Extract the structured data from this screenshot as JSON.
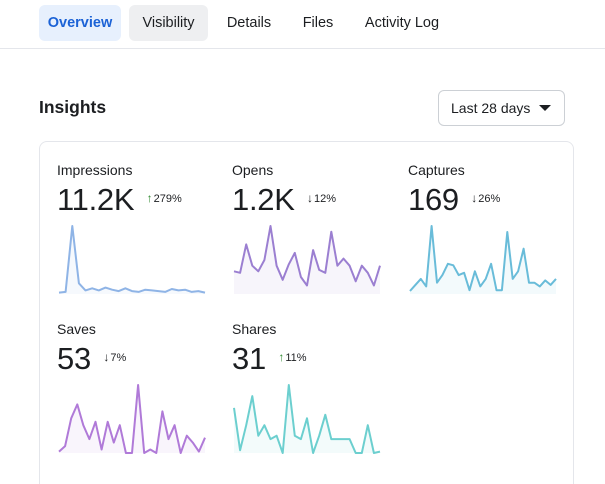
{
  "tabs": [
    {
      "label": "Overview",
      "active": true
    },
    {
      "label": "Visibility",
      "active": false
    },
    {
      "label": "Details",
      "active": false
    },
    {
      "label": "Files",
      "active": false
    },
    {
      "label": "Activity Log",
      "active": false
    }
  ],
  "insights": {
    "title": "Insights",
    "range": {
      "selected": "Last 28 days"
    }
  },
  "colors": {
    "accent": "#1b62d6",
    "impressions": "#8fb4e6",
    "opens": "#9b7fd1",
    "captures": "#69bcd9",
    "saves": "#b07ad8",
    "shares": "#6ccfcf",
    "up": "#2f8a2f"
  },
  "metrics": [
    {
      "key": "impressions",
      "label": "Impressions",
      "value": "11.2K",
      "change": "279%",
      "direction": "up",
      "series": [
        2,
        3,
        95,
        15,
        5,
        8,
        5,
        9,
        6,
        4,
        8,
        4,
        3,
        6,
        5,
        4,
        3,
        7,
        5,
        6,
        3,
        4,
        2
      ]
    },
    {
      "key": "opens",
      "label": "Opens",
      "value": "1.2K",
      "change": "12%",
      "direction": "down",
      "series": [
        32,
        30,
        70,
        40,
        32,
        48,
        96,
        40,
        20,
        42,
        58,
        24,
        12,
        62,
        34,
        30,
        88,
        40,
        50,
        40,
        18,
        40,
        30,
        12,
        40
      ]
    },
    {
      "key": "captures",
      "label": "Captures",
      "value": "169",
      "change": "26%",
      "direction": "down",
      "series": [
        4,
        12,
        20,
        10,
        90,
        15,
        25,
        40,
        38,
        25,
        28,
        5,
        30,
        10,
        20,
        40,
        5,
        5,
        82,
        20,
        30,
        60,
        15,
        15,
        10,
        18,
        12,
        20
      ]
    },
    {
      "key": "saves",
      "label": "Saves",
      "value": "53",
      "change": "7%",
      "direction": "down",
      "series": [
        2,
        10,
        50,
        70,
        40,
        20,
        45,
        5,
        45,
        15,
        40,
        0,
        0,
        98,
        0,
        5,
        0,
        60,
        20,
        40,
        0,
        25,
        15,
        2,
        22
      ]
    },
    {
      "key": "shares",
      "label": "Shares",
      "value": "31",
      "change": "11%",
      "direction": "up",
      "series": [
        65,
        4,
        40,
        82,
        25,
        40,
        20,
        25,
        0,
        98,
        25,
        20,
        50,
        0,
        25,
        55,
        20,
        20,
        20,
        20,
        0,
        0,
        40,
        0,
        2
      ]
    }
  ]
}
